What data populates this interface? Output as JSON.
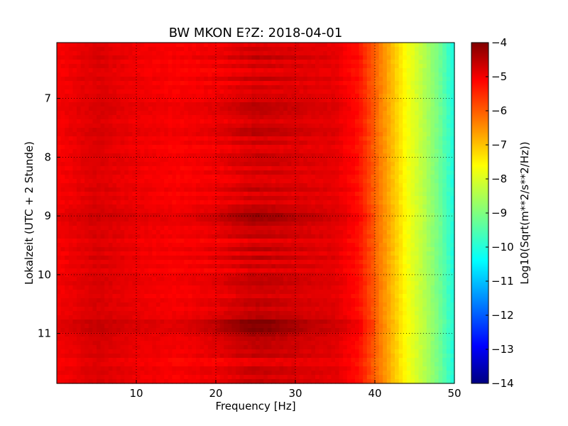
{
  "chart_data": {
    "type": "heatmap",
    "title": "BW MKON E?Z: 2018-04-01",
    "xlabel": "Frequency [Hz]",
    "ylabel": "Lokalzeit (UTC + 2 Stunde)",
    "xlim": [
      0,
      50
    ],
    "ylim": [
      6.05,
      11.85
    ],
    "x_ticks": [
      10,
      20,
      30,
      40,
      50
    ],
    "y_ticks": [
      7,
      8,
      9,
      10,
      11
    ],
    "y_inverted": true,
    "grid": true,
    "colorbar": {
      "label": "Log10(Sqrt(m**2/s**2/Hz))",
      "range": [
        -14,
        -4
      ],
      "ticks": [
        -4,
        -5,
        -6,
        -7,
        -8,
        -9,
        -10,
        -11,
        -12,
        -13,
        -14
      ],
      "colormap": "jet"
    },
    "frequency_profile": {
      "frequency_hz": [
        0,
        5,
        10,
        15,
        20,
        25,
        30,
        35,
        38,
        40,
        42,
        44,
        46,
        48,
        50
      ],
      "log10_amplitude": [
        -5.2,
        -4.9,
        -5.1,
        -5.2,
        -5.1,
        -4.8,
        -4.9,
        -5.0,
        -5.4,
        -6.2,
        -7.0,
        -7.8,
        -8.4,
        -9.1,
        -10.0
      ]
    },
    "notable_features": {
      "strong_band_hz": [
        22,
        28
      ],
      "strong_times": [
        9.0,
        10.8,
        11.0
      ]
    }
  }
}
